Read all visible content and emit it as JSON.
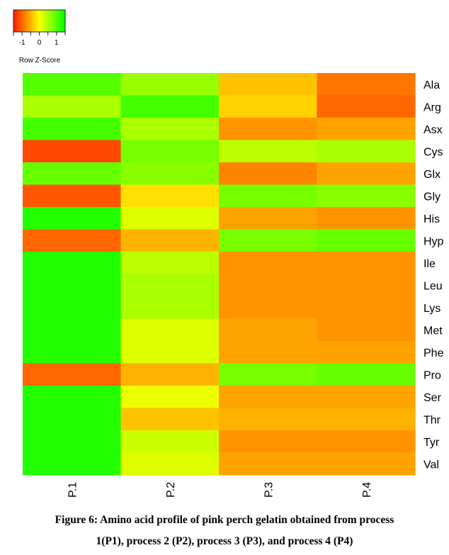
{
  "chart_data": {
    "type": "heatmap",
    "title": "",
    "columns": [
      "P.1",
      "P.2",
      "P.3",
      "P.4"
    ],
    "rows": [
      "Ala",
      "Arg",
      "Asx",
      "Cys",
      "Glx",
      "Gly",
      "His",
      "Hyp",
      "Ile",
      "Leu",
      "Lys",
      "Met",
      "Phe",
      "Pro",
      "Ser",
      "Thr",
      "Tyr",
      "Val"
    ],
    "values": [
      [
        1.0,
        0.6,
        -0.4,
        -0.9
      ],
      [
        0.5,
        1.1,
        -0.3,
        -1.0
      ],
      [
        1.1,
        0.5,
        -0.7,
        -0.6
      ],
      [
        -1.2,
        0.8,
        0.4,
        0.5
      ],
      [
        0.9,
        0.7,
        -0.8,
        -0.6
      ],
      [
        -1.1,
        -0.2,
        0.8,
        0.7
      ],
      [
        1.3,
        0.2,
        -0.6,
        -0.7
      ],
      [
        -1.0,
        -0.5,
        0.8,
        0.9
      ],
      [
        1.3,
        0.4,
        -0.7,
        -0.7
      ],
      [
        1.3,
        0.5,
        -0.7,
        -0.7
      ],
      [
        1.3,
        0.5,
        -0.7,
        -0.7
      ],
      [
        1.3,
        0.2,
        -0.6,
        -0.7
      ],
      [
        1.3,
        0.2,
        -0.6,
        -0.6
      ],
      [
        -1.0,
        -0.5,
        0.8,
        0.9
      ],
      [
        1.3,
        0.1,
        -0.6,
        -0.6
      ],
      [
        1.3,
        -0.4,
        -0.5,
        -0.5
      ],
      [
        1.3,
        0.3,
        -0.7,
        -0.7
      ],
      [
        1.3,
        0.2,
        -0.6,
        -0.6
      ]
    ],
    "color_scale": {
      "low": "#ff1a00",
      "mid": "#ffff00",
      "high": "#00ff00",
      "range": [
        -1.5,
        1.5
      ]
    },
    "legend": {
      "title": "Row Z-Score",
      "ticks": [
        "-1",
        "0",
        "1"
      ],
      "position": "top-left"
    }
  },
  "caption": {
    "line1": "Figure 6: Amino acid profile of pink perch gelatin obtained from process",
    "line2": "1(P1),  process 2 (P2), process 3 (P3), and process 4 (P4)"
  }
}
